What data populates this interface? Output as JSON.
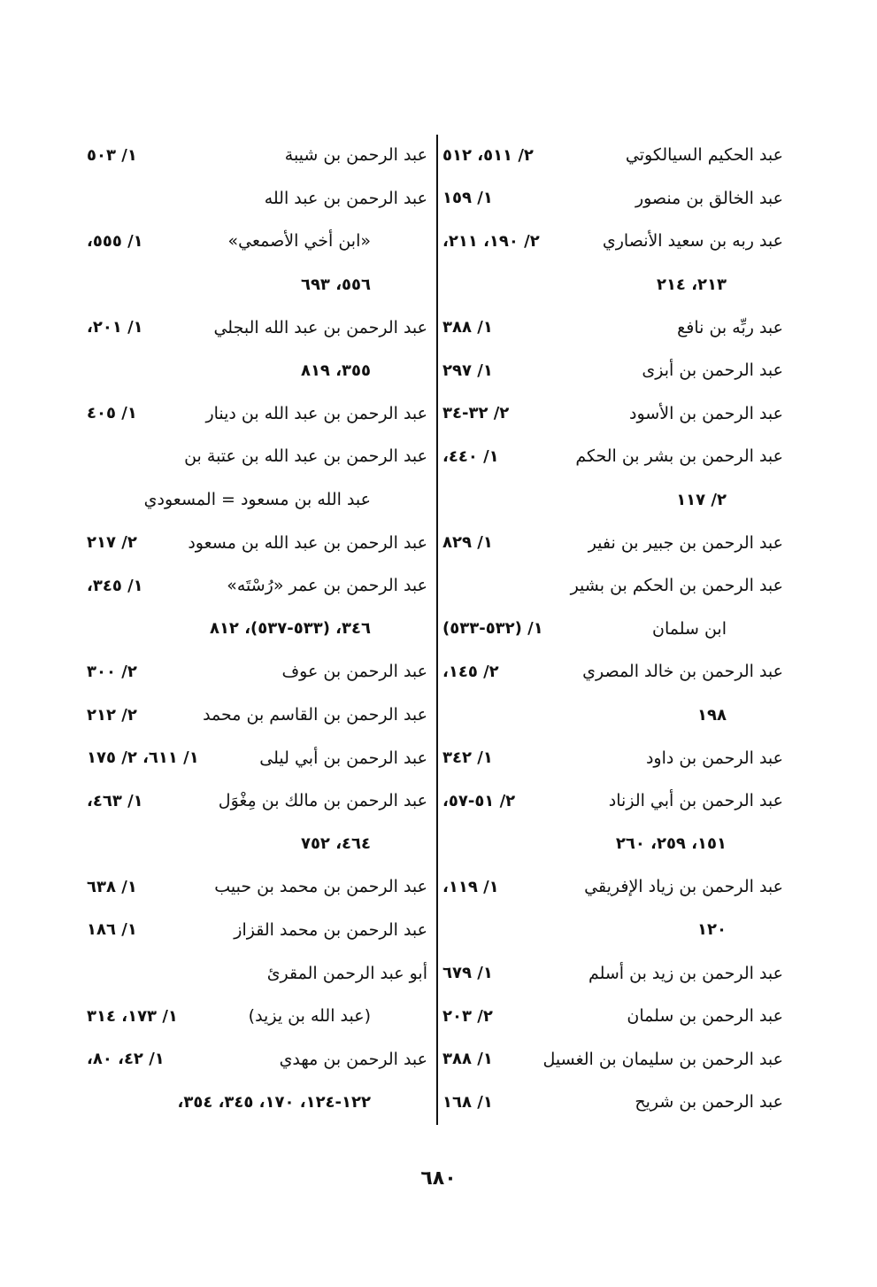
{
  "page_number": "٦٨٠",
  "right_column": [
    {
      "name": "عبد الحكيم السيالكوتي",
      "ref": "٢/ ٥١١، ٥١٢"
    },
    {
      "name": "عبد الخالق بن منصور",
      "ref": "١/ ١٥٩"
    },
    {
      "name": "عبد ربه بن سعيد الأنصاري",
      "ref": "٢/ ١٩٠، ٢١١،"
    },
    {
      "cont": "٢١٣، ٢١٤"
    },
    {
      "name": "عبد ربِّه بن نافع",
      "ref": "١/ ٣٨٨"
    },
    {
      "name": "عبد الرحمن بن أبزى",
      "ref": "١/ ٢٩٧"
    },
    {
      "name": "عبد الرحمن بن الأسود",
      "ref": "٢/ ٣٢-٣٤"
    },
    {
      "name": "عبد الرحمن بن بشر بن الحكم",
      "ref": "١/ ٤٤٠،"
    },
    {
      "cont": "٢/ ١١٧"
    },
    {
      "name": "عبد الرحمن بن جبير بن نفير",
      "ref": "١/ ٨٢٩"
    },
    {
      "name": "عبد الرحمن بن الحكم بن بشير",
      "ref": ""
    },
    {
      "name": "ابن سلمان",
      "ref": "١/ (٥٣٢-٥٣٣)",
      "indent": true
    },
    {
      "name": "عبد الرحمن بن خالد المصري",
      "ref": "٢/ ١٤٥،"
    },
    {
      "cont": "١٩٨"
    },
    {
      "name": "عبد الرحمن بن داود",
      "ref": "١/ ٣٤٢"
    },
    {
      "name": "عبد الرحمن بن أبي الزناد",
      "ref": "٢/ ٥١-٥٧،"
    },
    {
      "cont": "١٥١، ٢٥٩، ٢٦٠"
    },
    {
      "name": "عبد الرحمن بن زياد الإفريقي",
      "ref": "١/ ١١٩،"
    },
    {
      "cont": "١٢٠"
    },
    {
      "name": "عبد الرحمن بن زيد بن أسلم",
      "ref": "١/ ٦٧٩"
    },
    {
      "name": "عبد الرحمن بن سلمان",
      "ref": "٢/ ٢٠٣"
    },
    {
      "name": "عبد الرحمن بن سليمان بن الغسيل",
      "ref": "١/ ٣٨٨"
    },
    {
      "name": "عبد الرحمن بن شريح",
      "ref": "١/ ١٦٨"
    }
  ],
  "left_column": [
    {
      "name": "عبد الرحمن بن شيبة",
      "ref": "١/ ٥٠٣"
    },
    {
      "name": "عبد الرحمن بن عبد الله",
      "ref": ""
    },
    {
      "name": "«ابن أخي الأصمعي»",
      "ref": "١/ ٥٥٥،",
      "indent": true
    },
    {
      "cont": "٥٥٦، ٦٩٣"
    },
    {
      "name": "عبد الرحمن بن عبد الله البجلي",
      "ref": "١/ ٢٠١،"
    },
    {
      "cont": "٣٥٥، ٨١٩"
    },
    {
      "name": "عبد الرحمن بن عبد الله بن دينار",
      "ref": "١/ ٤٠٥"
    },
    {
      "name": "عبد الرحمن بن عبد الله بن عتبة بن",
      "ref": ""
    },
    {
      "cont": "عبد الله بن مسعود = المسعودي"
    },
    {
      "name": "عبد الرحمن بن عبد الله بن مسعود",
      "ref": "٢/ ٢١٧"
    },
    {
      "name": "عبد الرحمن بن عمر «رُسْتَه»",
      "ref": "١/ ٣٤٥،"
    },
    {
      "cont": "٣٤٦، (٥٣٣-٥٣٧)، ٨١٢"
    },
    {
      "name": "عبد الرحمن بن عوف",
      "ref": "٢/ ٣٠٠"
    },
    {
      "name": "عبد الرحمن بن القاسم بن محمد",
      "ref": "٢/ ٢١٢"
    },
    {
      "name": "عبد الرحمن بن أبي ليلى",
      "ref": "١/ ٦١١، ٢/ ١٧٥"
    },
    {
      "name": "عبد الرحمن بن مالك بن مِغْوَل",
      "ref": "١/ ٤٦٣،"
    },
    {
      "cont": "٤٦٤، ٧٥٢"
    },
    {
      "name": "عبد الرحمن بن محمد بن حبيب",
      "ref": "١/ ٦٣٨"
    },
    {
      "name": "عبد الرحمن بن محمد القزاز",
      "ref": "١/ ١٨٦"
    },
    {
      "name": "أبو عبد الرحمن المقرئ",
      "ref": ""
    },
    {
      "name": "(عبد الله بن يزيد)",
      "ref": "١/ ١٧٣، ٣١٤",
      "indent": true
    },
    {
      "name": "عبد الرحمن بن مهدي",
      "ref": "١/ ٤٢،   ٨٠،"
    },
    {
      "cont": "١٢٢-١٢٤، ١٧٠، ٣٤٥، ٣٥٤،"
    }
  ]
}
